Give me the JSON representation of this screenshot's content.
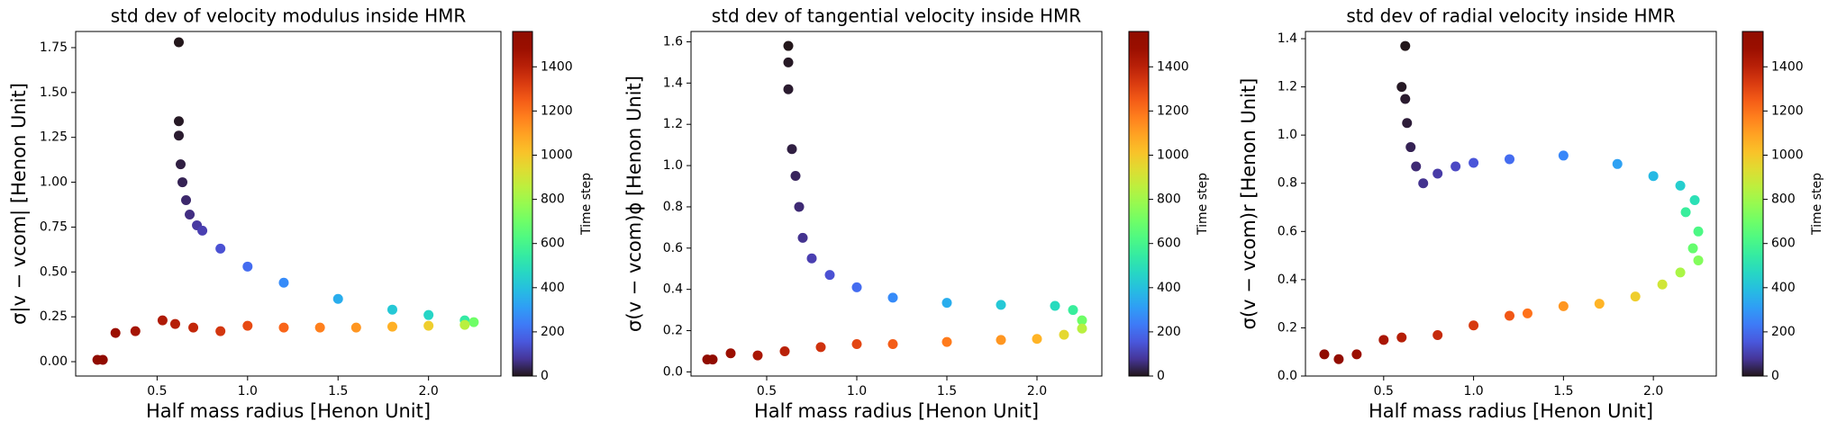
{
  "chart_data": [
    {
      "type": "scatter",
      "title": "std dev of velocity modulus inside HMR",
      "xlabel": "Half mass radius [Henon Unit]",
      "ylabel": "σ|v − vcom| [Henon Unit]",
      "colormap": "turbo",
      "colorbar_label": "Time step",
      "clim": [
        0,
        1560
      ],
      "cticks": [
        0,
        200,
        400,
        600,
        800,
        1000,
        1200,
        1400
      ],
      "xlim": [
        0.05,
        2.4
      ],
      "ylim": [
        -0.08,
        1.84
      ],
      "xticks": [
        0.5,
        {
          "value": 1.0,
          "label": "1.0"
        },
        1.5,
        {
          "value": 2.0,
          "label": "2.0"
        }
      ],
      "yticks": [
        {
          "value": 0,
          "label": "0.00"
        },
        0.25,
        {
          "value": 0.5,
          "label": "0.50"
        },
        0.75,
        {
          "value": 1.0,
          "label": "1.00"
        },
        1.25,
        {
          "value": 1.5,
          "label": "1.50"
        },
        1.75
      ],
      "x": [
        0.62,
        0.62,
        0.62,
        0.63,
        0.64,
        0.66,
        0.68,
        0.72,
        0.75,
        0.85,
        1.0,
        1.2,
        1.5,
        1.8,
        2.0,
        2.2,
        2.25,
        2.2,
        2.0,
        1.8,
        1.6,
        1.4,
        1.2,
        1.0,
        0.85,
        0.7,
        0.6,
        0.53,
        0.38,
        0.27,
        0.2,
        0.17
      ],
      "y": [
        1.78,
        1.34,
        1.26,
        1.1,
        1.0,
        0.9,
        0.82,
        0.76,
        0.73,
        0.63,
        0.53,
        0.44,
        0.35,
        0.29,
        0.26,
        0.23,
        0.22,
        0.205,
        0.2,
        0.195,
        0.19,
        0.19,
        0.19,
        0.2,
        0.17,
        0.19,
        0.21,
        0.23,
        0.17,
        0.16,
        0.01,
        0.01
      ],
      "c": [
        0,
        5,
        10,
        20,
        30,
        45,
        60,
        85,
        100,
        140,
        200,
        270,
        350,
        420,
        460,
        540,
        700,
        850,
        980,
        1060,
        1120,
        1170,
        1230,
        1290,
        1340,
        1380,
        1410,
        1425,
        1450,
        1480,
        1530,
        1555
      ]
    },
    {
      "type": "scatter",
      "title": "std dev of tangential velocity inside HMR",
      "xlabel": "Half mass radius [Henon Unit]",
      "ylabel": "σ(v − vcom)ϕ [Henon Unit]",
      "colormap": "turbo",
      "colorbar_label": "Time step",
      "clim": [
        0,
        1560
      ],
      "cticks": [
        0,
        200,
        400,
        600,
        800,
        1000,
        1200,
        1400
      ],
      "xlim": [
        0.08,
        2.36
      ],
      "ylim": [
        -0.02,
        1.65
      ],
      "xticks": [
        0.5,
        {
          "value": 1.0,
          "label": "1.0"
        },
        1.5,
        {
          "value": 2.0,
          "label": "2.0"
        }
      ],
      "yticks": [
        {
          "value": 0,
          "label": "0.0"
        },
        0.2,
        0.4,
        0.6,
        0.8,
        {
          "value": 1.0,
          "label": "1.0"
        },
        1.2,
        1.4,
        1.6
      ],
      "x": [
        0.62,
        0.62,
        0.62,
        0.64,
        0.66,
        0.68,
        0.7,
        0.75,
        0.85,
        1.0,
        1.2,
        1.5,
        1.8,
        2.1,
        2.2,
        2.25,
        2.25,
        2.15,
        2.0,
        1.8,
        1.5,
        1.2,
        1.0,
        0.8,
        0.6,
        0.45,
        0.3,
        0.2,
        0.17
      ],
      "y": [
        1.58,
        1.5,
        1.37,
        1.08,
        0.95,
        0.8,
        0.65,
        0.55,
        0.47,
        0.41,
        0.36,
        0.335,
        0.325,
        0.32,
        0.3,
        0.25,
        0.21,
        0.18,
        0.16,
        0.155,
        0.145,
        0.135,
        0.135,
        0.12,
        0.1,
        0.08,
        0.09,
        0.06,
        0.06
      ],
      "c": [
        0,
        5,
        10,
        20,
        35,
        50,
        70,
        100,
        140,
        200,
        270,
        350,
        420,
        480,
        560,
        700,
        850,
        950,
        1050,
        1120,
        1180,
        1250,
        1300,
        1350,
        1400,
        1440,
        1480,
        1530,
        1550
      ]
    },
    {
      "type": "scatter",
      "title": "std dev of radial velocity inside HMR",
      "xlabel": "Half mass radius [Henon Unit]",
      "ylabel": "σ(v − vcom)r [Henon Unit]",
      "colormap": "turbo",
      "colorbar_label": "Time step",
      "clim": [
        0,
        1560
      ],
      "cticks": [
        0,
        200,
        400,
        600,
        800,
        1000,
        1200,
        1400
      ],
      "xlim": [
        0.065,
        2.35
      ],
      "ylim": [
        0,
        1.43
      ],
      "xticks": [
        0.5,
        {
          "value": 1.0,
          "label": "1.0"
        },
        1.5,
        {
          "value": 2.0,
          "label": "2.0"
        }
      ],
      "yticks": [
        {
          "value": 0,
          "label": "0.0"
        },
        0.2,
        0.4,
        0.6,
        0.8,
        {
          "value": 1.0,
          "label": "1.0"
        },
        1.2,
        1.4
      ],
      "x": [
        0.62,
        0.6,
        0.62,
        0.63,
        0.65,
        0.68,
        0.72,
        0.8,
        0.9,
        1.0,
        1.2,
        1.5,
        1.8,
        2.0,
        2.15,
        2.23,
        2.18,
        2.25,
        2.22,
        2.25,
        2.15,
        2.05,
        1.9,
        1.7,
        1.5,
        1.3,
        1.2,
        1.0,
        0.8,
        0.6,
        0.5,
        0.35,
        0.25,
        0.17
      ],
      "y": [
        1.37,
        1.2,
        1.15,
        1.05,
        0.95,
        0.87,
        0.8,
        0.84,
        0.87,
        0.885,
        0.9,
        0.915,
        0.88,
        0.83,
        0.79,
        0.73,
        0.68,
        0.6,
        0.53,
        0.48,
        0.43,
        0.38,
        0.33,
        0.3,
        0.29,
        0.26,
        0.25,
        0.21,
        0.17,
        0.16,
        0.15,
        0.09,
        0.07,
        0.09
      ],
      "c": [
        0,
        5,
        10,
        15,
        30,
        50,
        70,
        90,
        120,
        150,
        200,
        260,
        320,
        380,
        440,
        500,
        560,
        620,
        680,
        740,
        820,
        900,
        980,
        1050,
        1120,
        1200,
        1260,
        1330,
        1370,
        1410,
        1440,
        1480,
        1520,
        1555
      ]
    }
  ]
}
